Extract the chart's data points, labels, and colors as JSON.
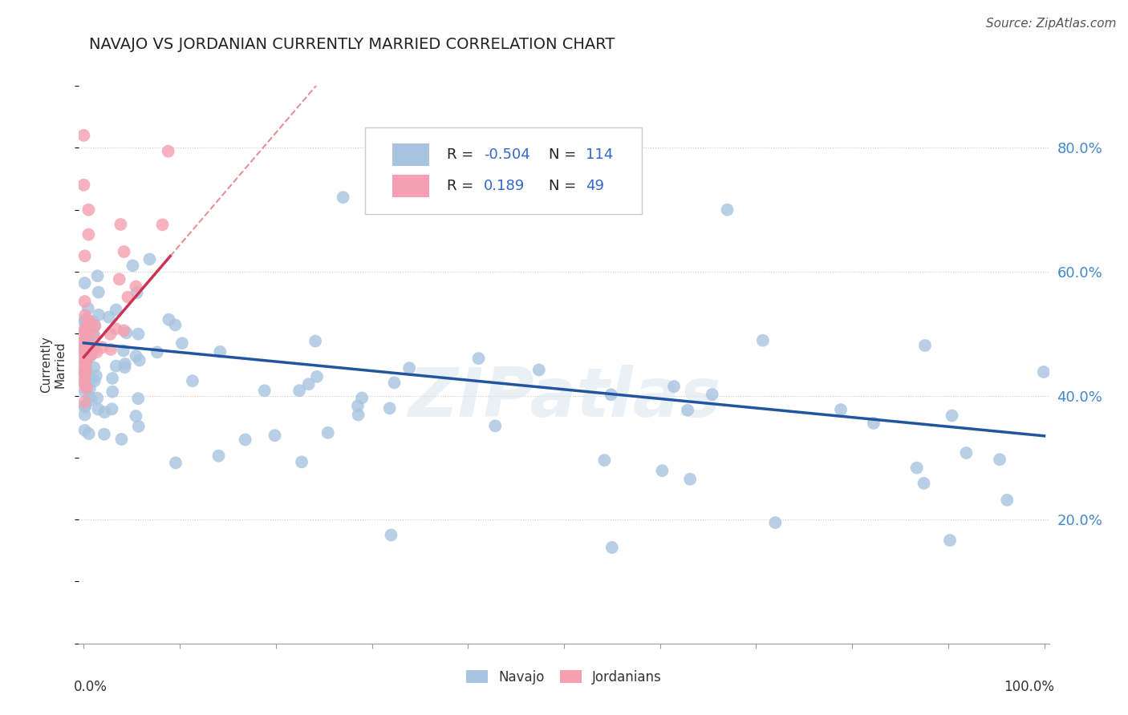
{
  "title": "NAVAJO VS JORDANIAN CURRENTLY MARRIED CORRELATION CHART",
  "source": "Source: ZipAtlas.com",
  "ylabel": "Currently\nMarried",
  "legend_navajo": "Navajo",
  "legend_jordanians": "Jordanians",
  "R_navajo": -0.504,
  "N_navajo": 114,
  "R_jordanians": 0.189,
  "N_jordanians": 49,
  "navajo_color": "#a8c4e0",
  "jordanians_color": "#f4a0b0",
  "trend_navajo_color": "#2255a0",
  "trend_jordanians_color": "#cc3355",
  "trend_jordanians_dashed_color": "#e8909a",
  "background_color": "#ffffff",
  "watermark": "ZIPatlas",
  "ytick_positions": [
    0.2,
    0.4,
    0.6,
    0.8
  ],
  "ytick_labels": [
    "20.0%",
    "40.0%",
    "60.0%",
    "80.0%"
  ],
  "ymin": 0.0,
  "ymax": 0.9,
  "xmin": -0.005,
  "xmax": 1.005
}
